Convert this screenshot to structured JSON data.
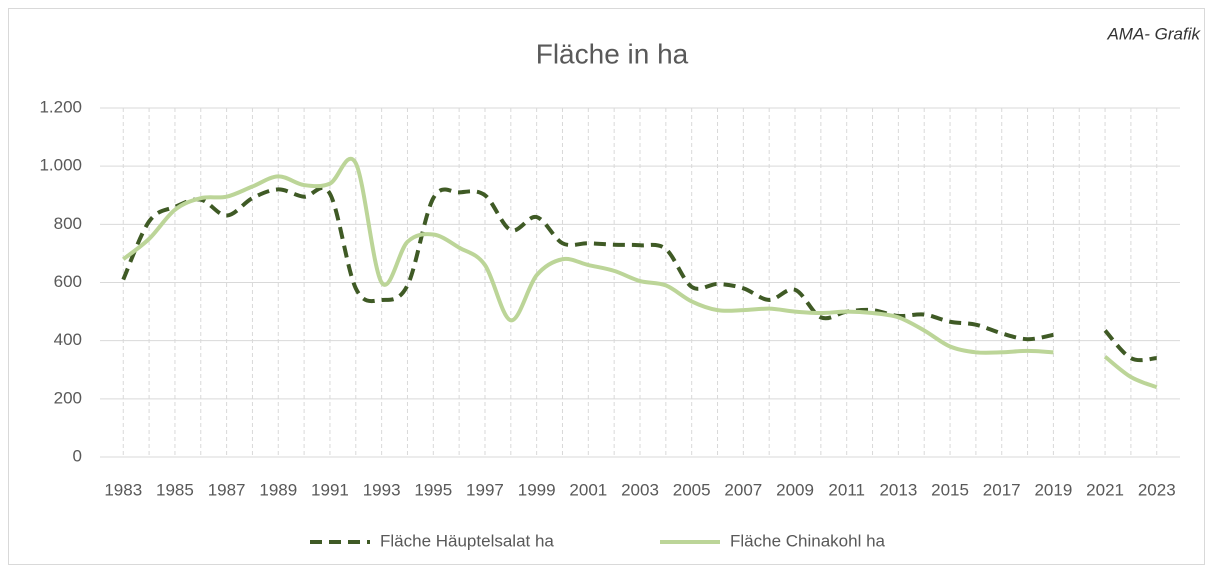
{
  "chart_data": {
    "type": "line",
    "title": "Fläche in ha",
    "annotation": "AMA- Grafik",
    "x": [
      1983,
      1984,
      1985,
      1986,
      1987,
      1988,
      1989,
      1990,
      1991,
      1992,
      1993,
      1994,
      1995,
      1996,
      1997,
      1998,
      1999,
      2000,
      2001,
      2002,
      2003,
      2004,
      2005,
      2006,
      2007,
      2008,
      2009,
      2010,
      2011,
      2012,
      2013,
      2014,
      2015,
      2016,
      2017,
      2018,
      2019,
      2020,
      2021,
      2022,
      2023
    ],
    "xlim": [
      1982.1,
      2023.9
    ],
    "xticks": [
      1983,
      1985,
      1987,
      1989,
      1991,
      1993,
      1995,
      1997,
      1999,
      2001,
      2003,
      2005,
      2007,
      2009,
      2011,
      2013,
      2015,
      2017,
      2019,
      2021,
      2023
    ],
    "ylim": [
      0,
      1200
    ],
    "yticks": [
      0,
      200,
      400,
      600,
      800,
      {
        "value": 1000,
        "label": "1.000"
      },
      {
        "value": 1200,
        "label": "1.200"
      }
    ],
    "grid": true,
    "legend": "bottom",
    "series": [
      {
        "name": "Fläche Häuptelsalat  ha",
        "color": "#3f5a25",
        "dashed": true,
        "values": [
          610,
          810,
          860,
          885,
          830,
          890,
          920,
          895,
          905,
          580,
          540,
          590,
          890,
          910,
          900,
          780,
          825,
          735,
          735,
          730,
          728,
          715,
          585,
          595,
          580,
          540,
          575,
          480,
          500,
          505,
          485,
          490,
          465,
          455,
          425,
          405,
          420,
          null,
          435,
          340,
          340
        ]
      },
      {
        "name": "Fläche Chinakohl ha",
        "color": "#bcd598",
        "dashed": false,
        "values": [
          680,
          750,
          850,
          890,
          895,
          930,
          965,
          935,
          940,
          1010,
          600,
          740,
          765,
          720,
          660,
          470,
          625,
          680,
          660,
          640,
          605,
          590,
          535,
          505,
          505,
          510,
          500,
          495,
          500,
          495,
          480,
          435,
          380,
          360,
          360,
          365,
          360,
          null,
          345,
          275,
          240
        ]
      }
    ]
  }
}
